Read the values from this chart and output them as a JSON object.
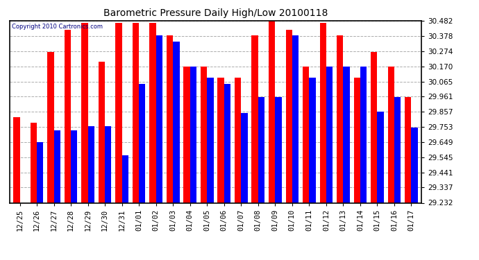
{
  "title": "Barometric Pressure Daily High/Low 20100118",
  "copyright": "Copyright 2010 Cartronics.com",
  "dates": [
    "12/25",
    "12/26",
    "12/27",
    "12/28",
    "12/29",
    "12/30",
    "12/31",
    "01/01",
    "01/02",
    "01/03",
    "01/04",
    "01/05",
    "01/06",
    "01/07",
    "01/08",
    "01/09",
    "01/10",
    "01/11",
    "01/12",
    "01/13",
    "01/14",
    "01/15",
    "01/16",
    "01/17"
  ],
  "highs": [
    29.82,
    29.78,
    30.27,
    30.42,
    30.47,
    30.2,
    30.47,
    30.47,
    30.47,
    30.38,
    30.17,
    30.17,
    30.09,
    30.09,
    30.38,
    30.5,
    30.42,
    30.17,
    30.47,
    30.38,
    30.09,
    30.27,
    30.17,
    29.96
  ],
  "lows": [
    29.23,
    29.65,
    29.73,
    29.73,
    29.76,
    29.76,
    29.56,
    30.05,
    30.38,
    30.34,
    30.17,
    30.09,
    30.05,
    29.85,
    29.96,
    29.96,
    30.38,
    30.09,
    30.17,
    30.17,
    30.17,
    29.86,
    29.96,
    29.75
  ],
  "ymin": 29.232,
  "ymax": 30.482,
  "yticks": [
    29.232,
    29.337,
    29.441,
    29.545,
    29.649,
    29.753,
    29.857,
    29.961,
    30.065,
    30.17,
    30.274,
    30.378,
    30.482
  ],
  "high_color": "#ff0000",
  "low_color": "#0000ff",
  "bg_color": "#ffffff",
  "grid_color": "#888888",
  "bar_width": 0.38,
  "figwidth": 6.9,
  "figheight": 3.75,
  "dpi": 100
}
